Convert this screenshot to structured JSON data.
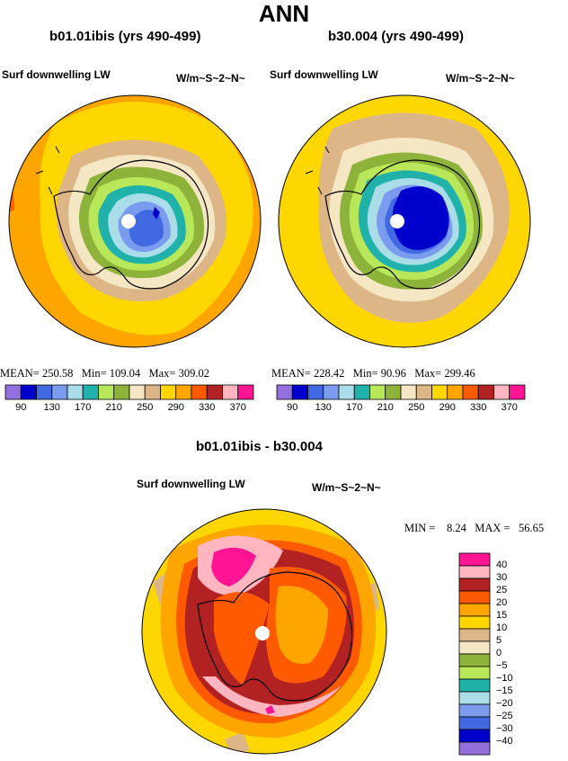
{
  "title": "ANN",
  "panels": [
    {
      "case": "b01.01ibis (yrs 490-499)",
      "variable": "Surf downwelling LW",
      "units": "W/m~S~2~N~",
      "stats": {
        "mean": "250.58",
        "min": "109.04",
        "max": "309.02"
      }
    },
    {
      "case": "b30.004 (yrs 490-499)",
      "variable": "Surf downwelling LW",
      "units": "W/m~S~2~N~",
      "stats": {
        "mean": "228.42",
        "min": "90.96",
        "max": "299.46"
      }
    }
  ],
  "stat_labels": {
    "mean": "MEAN=",
    "min": "Min=",
    "max": "Max=",
    "min_upper": "MIN =",
    "max_upper": "MAX ="
  },
  "colorbar": {
    "labels": [
      "90",
      "130",
      "170",
      "210",
      "250",
      "290",
      "330",
      "370"
    ],
    "colors": [
      "#9370db",
      "#0000cd",
      "#4169e1",
      "#7b9cee",
      "#aadde8",
      "#20b2aa",
      "#b8e85a",
      "#8db33a",
      "#f5e6c4",
      "#dcb687",
      "#ffd700",
      "#ffa500",
      "#ff5a00",
      "#b22222",
      "#ffb6c1",
      "#ff1493"
    ]
  },
  "diff": {
    "title": "b01.01ibis - b30.004",
    "variable": "Surf downwelling LW",
    "units": "W/m~S~2~N~",
    "stats": {
      "min": "8.24",
      "max": "56.65"
    },
    "legend_labels": [
      "40",
      "30",
      "25",
      "20",
      "15",
      "10",
      "5",
      "0",
      "−5",
      "−10",
      "−15",
      "−20",
      "−25",
      "−30",
      "−40"
    ],
    "legend_colors": [
      "#ff1493",
      "#ffb6c1",
      "#b22222",
      "#ff5a00",
      "#ffa500",
      "#ffd700",
      "#dcb687",
      "#f5e6c4",
      "#8db33a",
      "#b8e85a",
      "#20b2aa",
      "#aadde8",
      "#7b9cee",
      "#4169e1",
      "#0000cd",
      "#9370db"
    ]
  }
}
